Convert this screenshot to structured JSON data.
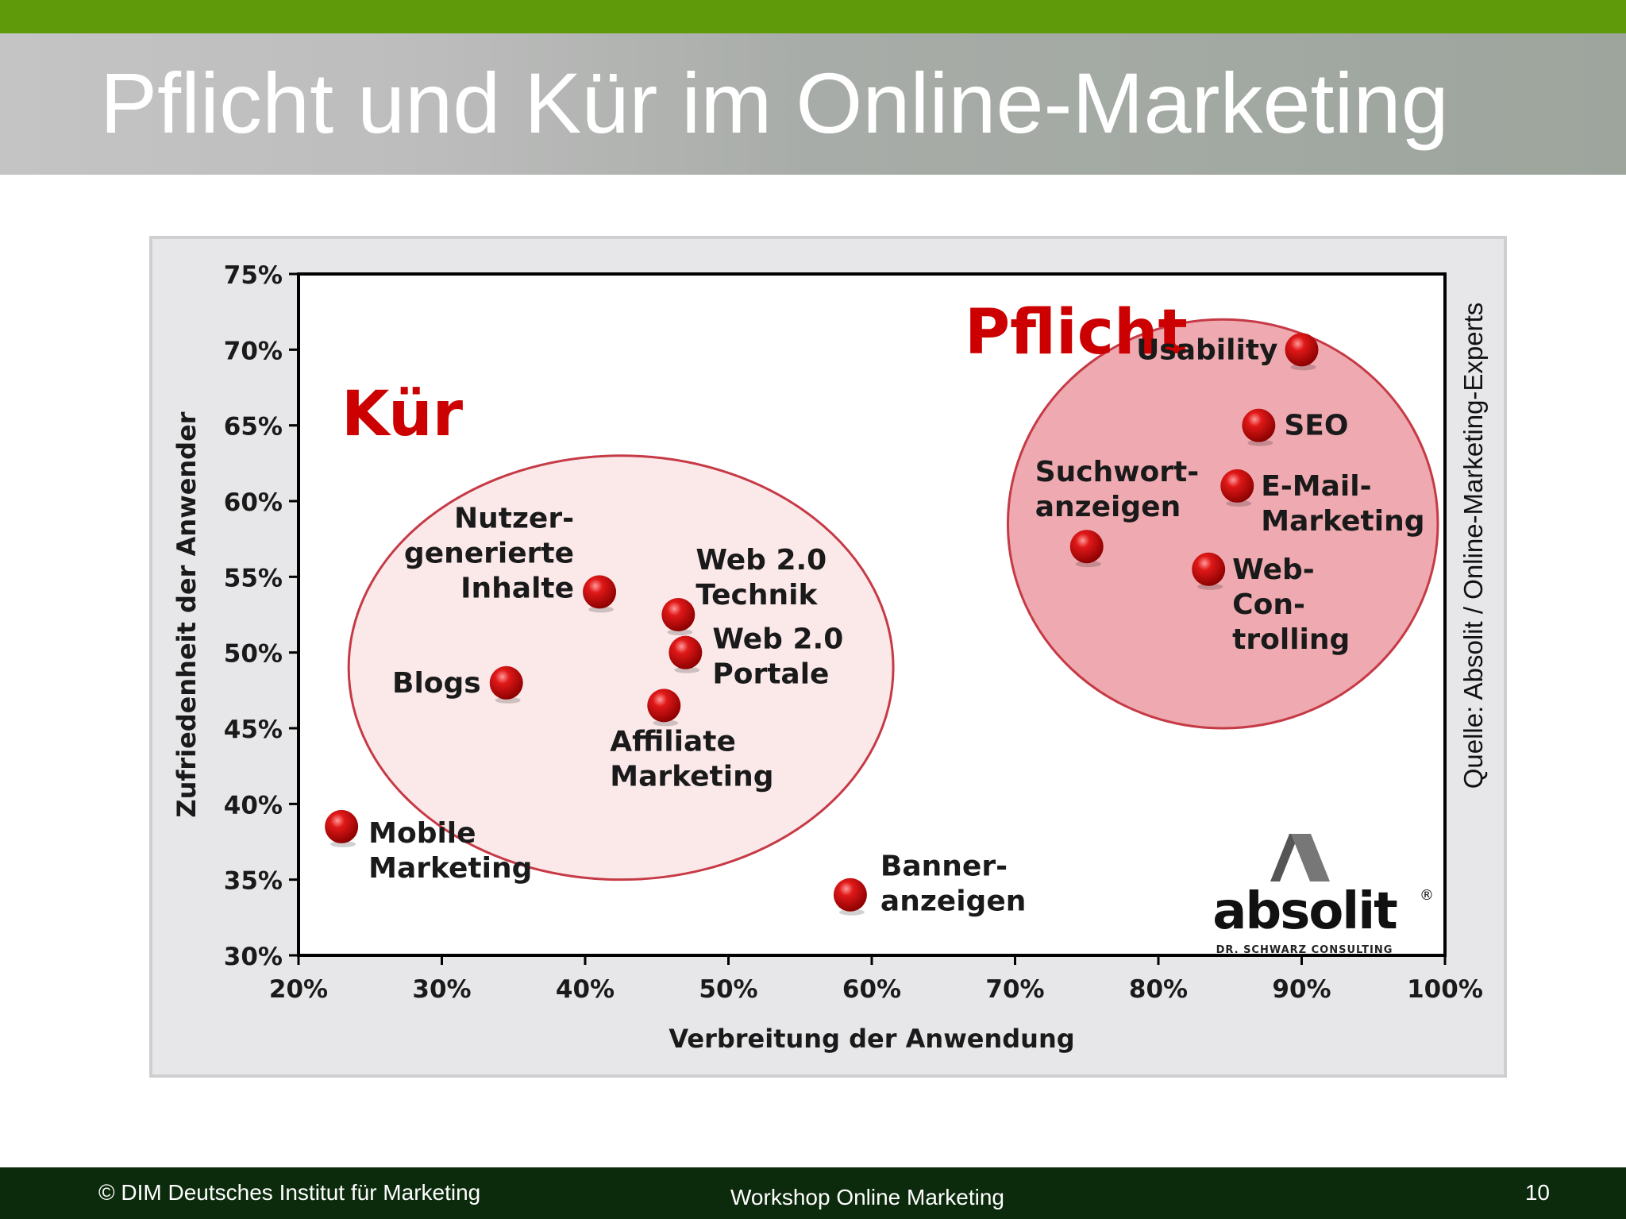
{
  "slide": {
    "title": "Pflicht und Kür im Online-Marketing"
  },
  "footer": {
    "left": "© DIM Deutsches Institut für Marketing",
    "center": "Workshop Online Marketing",
    "right": "10"
  },
  "colors": {
    "top_bar": "#5f9a0a",
    "footer_bg": "#0c2a0c",
    "accent_red": "#cc0000",
    "pflicht_fill": "#eeaab0",
    "kuer_fill": "#fbe9ea",
    "ellipse_stroke": "#c63a46"
  },
  "chart_data": {
    "type": "scatter",
    "xlabel": "Verbreitung der Anwendung",
    "ylabel": "Zufriedenheit der Anwender",
    "xlim": [
      20,
      100
    ],
    "ylim": [
      30,
      75
    ],
    "x_ticks": [
      "20%",
      "30%",
      "40%",
      "50%",
      "60%",
      "70%",
      "80%",
      "90%",
      "100%"
    ],
    "y_ticks": [
      "30%",
      "35%",
      "40%",
      "45%",
      "50%",
      "55%",
      "60%",
      "65%",
      "70%",
      "75%"
    ],
    "grid": false,
    "source_note": "Quelle: Absolit / Online-Marketing-Experts",
    "logo": {
      "name": "absolit",
      "mark": "®",
      "tagline": "DR. SCHWARZ CONSULTING"
    },
    "groups": [
      {
        "label": "Pflicht",
        "center": [
          84.5,
          58.5
        ],
        "radius_x": 15,
        "radius_y": 13.5
      },
      {
        "label": "Kür",
        "center": [
          42.5,
          49
        ],
        "radius_x": 19,
        "radius_y": 14
      }
    ],
    "points": [
      {
        "label_lines": [
          "Usability"
        ],
        "x": 90,
        "y": 70
      },
      {
        "label_lines": [
          "SEO"
        ],
        "x": 87,
        "y": 65
      },
      {
        "label_lines": [
          "E-Mail-",
          "Marketing"
        ],
        "x": 85.5,
        "y": 61
      },
      {
        "label_lines": [
          "Suchwort-",
          "anzeigen"
        ],
        "x": 75,
        "y": 57
      },
      {
        "label_lines": [
          "Web-",
          "Con-",
          "trolling"
        ],
        "x": 83.5,
        "y": 55.5
      },
      {
        "label_lines": [
          "Nutzer-",
          "generierte",
          "Inhalte"
        ],
        "x": 41,
        "y": 54
      },
      {
        "label_lines": [
          "Web 2.0",
          "Technik"
        ],
        "x": 46.5,
        "y": 52.5
      },
      {
        "label_lines": [
          "Web 2.0",
          "Portale"
        ],
        "x": 47,
        "y": 50
      },
      {
        "label_lines": [
          "Blogs"
        ],
        "x": 34.5,
        "y": 48
      },
      {
        "label_lines": [
          "Affiliate",
          "Marketing"
        ],
        "x": 45.5,
        "y": 46.5
      },
      {
        "label_lines": [
          "Mobile",
          "Marketing"
        ],
        "x": 23,
        "y": 38.5
      },
      {
        "label_lines": [
          "Banner-",
          "anzeigen"
        ],
        "x": 58.5,
        "y": 34
      }
    ]
  }
}
